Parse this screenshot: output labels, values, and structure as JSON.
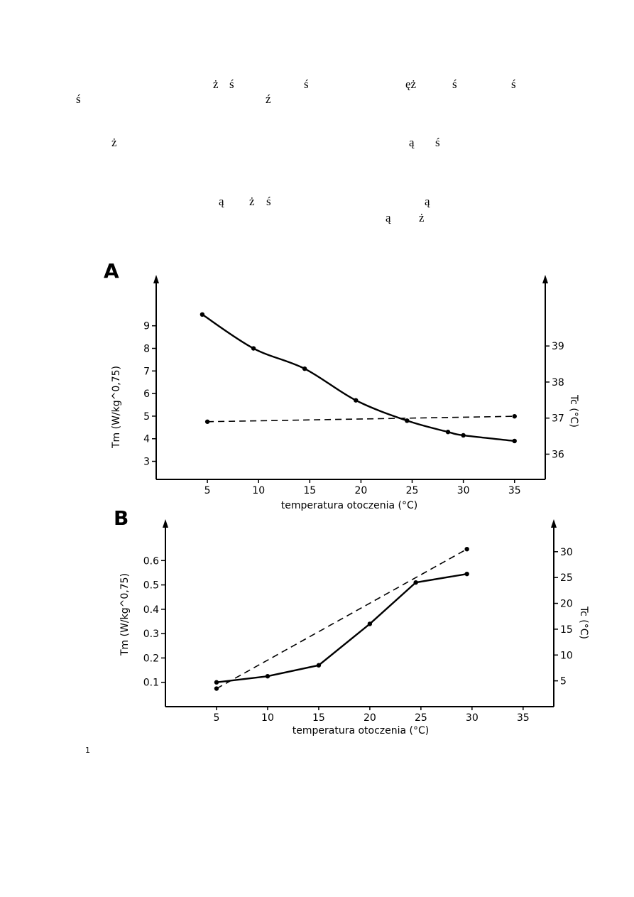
{
  "text_fragments": [
    {
      "text": "ż"
    },
    {
      "text": "ś"
    },
    {
      "text": "ś"
    },
    {
      "text": "ęż"
    },
    {
      "text": "ś"
    },
    {
      "text": "ś"
    },
    {
      "text": "ś"
    },
    {
      "text": "ź"
    },
    {
      "text": "ż"
    },
    {
      "text": "ą"
    },
    {
      "text": "ś"
    },
    {
      "text": "ą"
    },
    {
      "text": "ż"
    },
    {
      "text": "ś"
    },
    {
      "text": "ą"
    },
    {
      "text": "ą"
    },
    {
      "text": "ż"
    }
  ],
  "caption_fragment": "1",
  "chart_data": [
    {
      "panel": "A",
      "type": "line",
      "xlabel": "temperatura otoczenia (°C)",
      "ylabel_left": "Tm (W/kg^0,75)",
      "ylabel_right": "Tc (°C)",
      "x_ticks": [
        5,
        10,
        15,
        20,
        25,
        30,
        35
      ],
      "y_left_ticks": [
        3,
        4,
        5,
        6,
        7,
        8,
        9
      ],
      "y_right_ticks": [
        36,
        37,
        38,
        39
      ],
      "xlim": [
        0,
        38
      ],
      "ylim_left": [
        2.2,
        10.5
      ],
      "ylim_right": [
        35.3,
        40.5
      ],
      "series": [
        {
          "axis": "left",
          "style": "solid",
          "x": [
            4.5,
            9.5,
            14.5,
            19.5,
            24.5,
            28.5,
            30,
            35
          ],
          "y": [
            9.5,
            8.0,
            7.1,
            5.7,
            4.8,
            4.3,
            4.15,
            3.9
          ]
        },
        {
          "axis": "right",
          "style": "dashed",
          "x": [
            5,
            35
          ],
          "y": [
            36.9,
            37.05
          ]
        }
      ]
    },
    {
      "panel": "B",
      "type": "line",
      "xlabel": "temperatura otoczenia (°C)",
      "ylabel_left": "Tm (W/kg^0,75)",
      "ylabel_right": "Tc (°C)",
      "x_ticks": [
        5,
        10,
        15,
        20,
        25,
        30,
        35
      ],
      "y_left_ticks": [
        0.1,
        0.2,
        0.3,
        0.4,
        0.5,
        0.6
      ],
      "y_right_ticks": [
        5,
        10,
        15,
        20,
        25,
        30
      ],
      "xlim": [
        0,
        38
      ],
      "ylim_left": [
        0.0,
        0.7
      ],
      "ylim_right": [
        0,
        33
      ],
      "series": [
        {
          "axis": "left",
          "style": "solid",
          "x": [
            5,
            10,
            15,
            20,
            24.5,
            29.5
          ],
          "y": [
            0.1,
            0.125,
            0.17,
            0.34,
            0.51,
            0.545
          ]
        },
        {
          "axis": "right",
          "style": "dashed",
          "x": [
            5,
            29.5
          ],
          "y": [
            3.5,
            30.5
          ]
        }
      ]
    }
  ]
}
